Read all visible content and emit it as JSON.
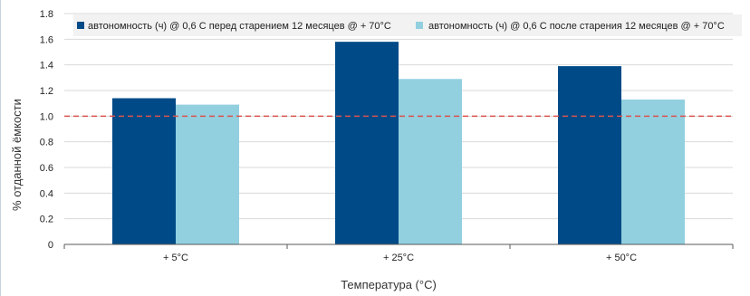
{
  "chart_data": {
    "type": "bar",
    "categories": [
      "+ 5°C",
      "+ 25°C",
      "+ 50°C"
    ],
    "series": [
      {
        "name": "автономность (ч) @ 0,6 C перед старением 12 месяцев @ + 70°C",
        "values": [
          1.14,
          1.58,
          1.39
        ],
        "color": "#004b87"
      },
      {
        "name": "автономность (ч) @ 0,6 C после старения 12 месяцев @ + 70°C",
        "values": [
          1.09,
          1.29,
          1.13
        ],
        "color": "#92d0e0"
      }
    ],
    "xlabel": "Температура (°C)",
    "ylabel": "% отданной ёмкости",
    "ylim": [
      0,
      1.8
    ],
    "yticks": [
      0,
      0.2,
      0.4,
      0.6,
      0.8,
      1.0,
      1.2,
      1.4,
      1.6,
      1.8
    ],
    "ytick_labels": [
      "0",
      "0.2",
      "0.4",
      "0.6",
      "0.8",
      "1.0",
      "1.2",
      "1.4",
      "1.6",
      "1.8"
    ],
    "reference_line": {
      "value": 1.0,
      "color": "#d9534f",
      "style": "dashed"
    },
    "grid": true,
    "legend_position": "top"
  }
}
